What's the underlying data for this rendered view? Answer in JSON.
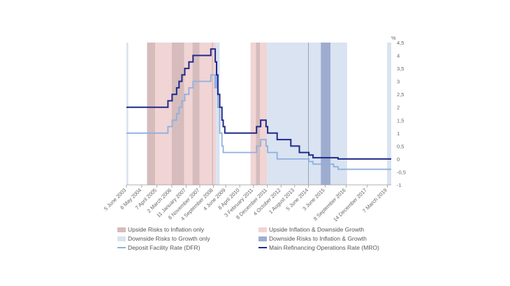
{
  "chart_data": {
    "type": "line",
    "title": "",
    "xlabel": "",
    "ylabel": "",
    "y_unit": "%",
    "ylim": [
      -1,
      4.5
    ],
    "yticks": [
      -1,
      -0.5,
      0,
      0.5,
      1,
      1.5,
      2,
      2.5,
      3,
      3.5,
      4,
      4.5
    ],
    "ytick_labels": [
      "-1",
      "-0,5",
      "0",
      "0,5",
      "1",
      "1,5",
      "2",
      "2,5",
      "3",
      "3,5",
      "4",
      "4,5"
    ],
    "xlim": [
      "2003-06-05",
      "2019-06-01"
    ],
    "x_ticks": [
      {
        "date": "2003-06-05",
        "label": "5 June 2003"
      },
      {
        "date": "2004-05-06",
        "label": "6 May 2004"
      },
      {
        "date": "2005-04-07",
        "label": "7 April 2005"
      },
      {
        "date": "2006-03-02",
        "label": "2 March 2006"
      },
      {
        "date": "2007-01-11",
        "label": "11 January 2007"
      },
      {
        "date": "2007-11-08",
        "label": "8 November 2007"
      },
      {
        "date": "2008-09-04",
        "label": "4 September 2008"
      },
      {
        "date": "2009-06-04",
        "label": "4 June 2009"
      },
      {
        "date": "2010-04-08",
        "label": "8 April 2010"
      },
      {
        "date": "2011-02-03",
        "label": "3 February 2011"
      },
      {
        "date": "2011-12-08",
        "label": "8 December 2011"
      },
      {
        "date": "2012-10-04",
        "label": "4 October 2012"
      },
      {
        "date": "2013-08-01",
        "label": "1 August 2013"
      },
      {
        "date": "2014-06-05",
        "label": "5 June 2014"
      },
      {
        "date": "2015-06-03",
        "label": "3 June 2015"
      },
      {
        "date": "2016-09-08",
        "label": "8 September 2016"
      },
      {
        "date": "2017-12-14",
        "label": "14 December 2017"
      },
      {
        "date": "2019-03-07",
        "label": "7 March 2019"
      }
    ],
    "risk_periods": [
      {
        "type": "downside_growth",
        "start": "2003-06-05",
        "end": "2003-07-15"
      },
      {
        "type": "upside_inflation",
        "start": "2004-09-01",
        "end": "2005-03-01"
      },
      {
        "type": "upside_inflation_downside_growth",
        "start": "2005-03-01",
        "end": "2006-03-01"
      },
      {
        "type": "upside_inflation",
        "start": "2006-03-01",
        "end": "2006-12-01"
      },
      {
        "type": "upside_inflation_downside_growth",
        "start": "2006-12-01",
        "end": "2007-06-01"
      },
      {
        "type": "upside_inflation",
        "start": "2007-06-01",
        "end": "2007-11-01"
      },
      {
        "type": "upside_inflation_downside_growth",
        "start": "2007-11-01",
        "end": "2008-08-01"
      },
      {
        "type": "upside_inflation",
        "start": "2008-08-01",
        "end": "2008-09-01"
      },
      {
        "type": "upside_inflation_downside_growth",
        "start": "2008-09-01",
        "end": "2008-11-01"
      },
      {
        "type": "downside_growth",
        "start": "2008-11-01",
        "end": "2009-01-20"
      },
      {
        "type": "upside_inflation_downside_growth",
        "start": "2010-12-01",
        "end": "2011-04-01"
      },
      {
        "type": "upside_inflation",
        "start": "2011-04-01",
        "end": "2011-07-01"
      },
      {
        "type": "upside_inflation_downside_growth",
        "start": "2011-07-01",
        "end": "2011-12-01"
      },
      {
        "type": "downside_growth",
        "start": "2011-12-01",
        "end": "2015-03-01"
      },
      {
        "type": "downside_inflation_growth",
        "start": "2015-03-01",
        "end": "2015-10-01"
      },
      {
        "type": "downside_growth",
        "start": "2015-10-01",
        "end": "2016-10-01"
      },
      {
        "type": "downside_growth",
        "start": "2019-03-01",
        "end": "2019-06-01"
      }
    ],
    "series": [
      {
        "name": "Deposit Facility Rate (DFR)",
        "key": "dfr",
        "color": "#8fb0de",
        "steps": [
          [
            "2003-06-05",
            1.0
          ],
          [
            "2005-12-06",
            1.25
          ],
          [
            "2006-03-08",
            1.5
          ],
          [
            "2006-06-15",
            1.75
          ],
          [
            "2006-08-09",
            2.0
          ],
          [
            "2006-10-11",
            2.25
          ],
          [
            "2006-12-13",
            2.5
          ],
          [
            "2007-03-14",
            2.75
          ],
          [
            "2007-06-13",
            3.0
          ],
          [
            "2008-07-09",
            3.25
          ],
          [
            "2008-10-08",
            2.75
          ],
          [
            "2008-10-15",
            3.25
          ],
          [
            "2008-11-12",
            2.75
          ],
          [
            "2008-12-10",
            2.0
          ],
          [
            "2009-01-21",
            1.0
          ],
          [
            "2009-03-11",
            0.5
          ],
          [
            "2009-04-08",
            0.25
          ],
          [
            "2011-04-13",
            0.5
          ],
          [
            "2011-07-13",
            0.75
          ],
          [
            "2011-11-09",
            0.5
          ],
          [
            "2011-12-14",
            0.25
          ],
          [
            "2012-07-11",
            0.0
          ],
          [
            "2014-06-11",
            -0.1
          ],
          [
            "2014-09-10",
            -0.2
          ],
          [
            "2015-12-09",
            -0.3
          ],
          [
            "2016-03-16",
            -0.4
          ],
          [
            "2019-06-01",
            -0.4
          ]
        ]
      },
      {
        "name": "Main Refinancing Operations Rate (MRO)",
        "key": "mro",
        "color": "#1f2a8a",
        "steps": [
          [
            "2003-06-05",
            2.0
          ],
          [
            "2005-12-06",
            2.25
          ],
          [
            "2006-03-08",
            2.5
          ],
          [
            "2006-06-15",
            2.75
          ],
          [
            "2006-08-09",
            3.0
          ],
          [
            "2006-10-11",
            3.25
          ],
          [
            "2006-12-13",
            3.5
          ],
          [
            "2007-03-14",
            3.75
          ],
          [
            "2007-06-13",
            4.0
          ],
          [
            "2008-07-09",
            4.25
          ],
          [
            "2008-10-15",
            3.75
          ],
          [
            "2008-11-12",
            3.25
          ],
          [
            "2008-12-10",
            2.5
          ],
          [
            "2009-01-21",
            2.0
          ],
          [
            "2009-03-11",
            1.5
          ],
          [
            "2009-04-08",
            1.25
          ],
          [
            "2009-05-13",
            1.0
          ],
          [
            "2011-04-13",
            1.25
          ],
          [
            "2011-07-13",
            1.5
          ],
          [
            "2011-11-09",
            1.25
          ],
          [
            "2011-12-14",
            1.0
          ],
          [
            "2012-07-11",
            0.75
          ],
          [
            "2013-05-08",
            0.5
          ],
          [
            "2013-11-13",
            0.25
          ],
          [
            "2014-06-11",
            0.15
          ],
          [
            "2014-09-10",
            0.05
          ],
          [
            "2016-03-16",
            0.0
          ],
          [
            "2019-06-01",
            0.0
          ]
        ]
      }
    ],
    "legend_position": "bottom",
    "grid": false
  },
  "legend": {
    "upside_inflation": "Upside Risks to Inflation only",
    "upside_inflation_downside_growth": "Upside Inflation & Downside Growth",
    "downside_growth": "Downside Risks to Growth only",
    "downside_inflation_growth": "Downside Risks to Inflation & Growth",
    "dfr": "Deposit Facility Rate (DFR)",
    "mro": "Main Refinancing Operations Rate (MRO)"
  },
  "colors": {
    "upside_inflation": "#d6bcbc",
    "upside_inflation_downside_growth": "#f1d4d4",
    "downside_growth": "#d9e3f1",
    "downside_inflation_growth": "#9eacd0",
    "dfr": "#8fb0de",
    "mro": "#1f2a8a"
  }
}
